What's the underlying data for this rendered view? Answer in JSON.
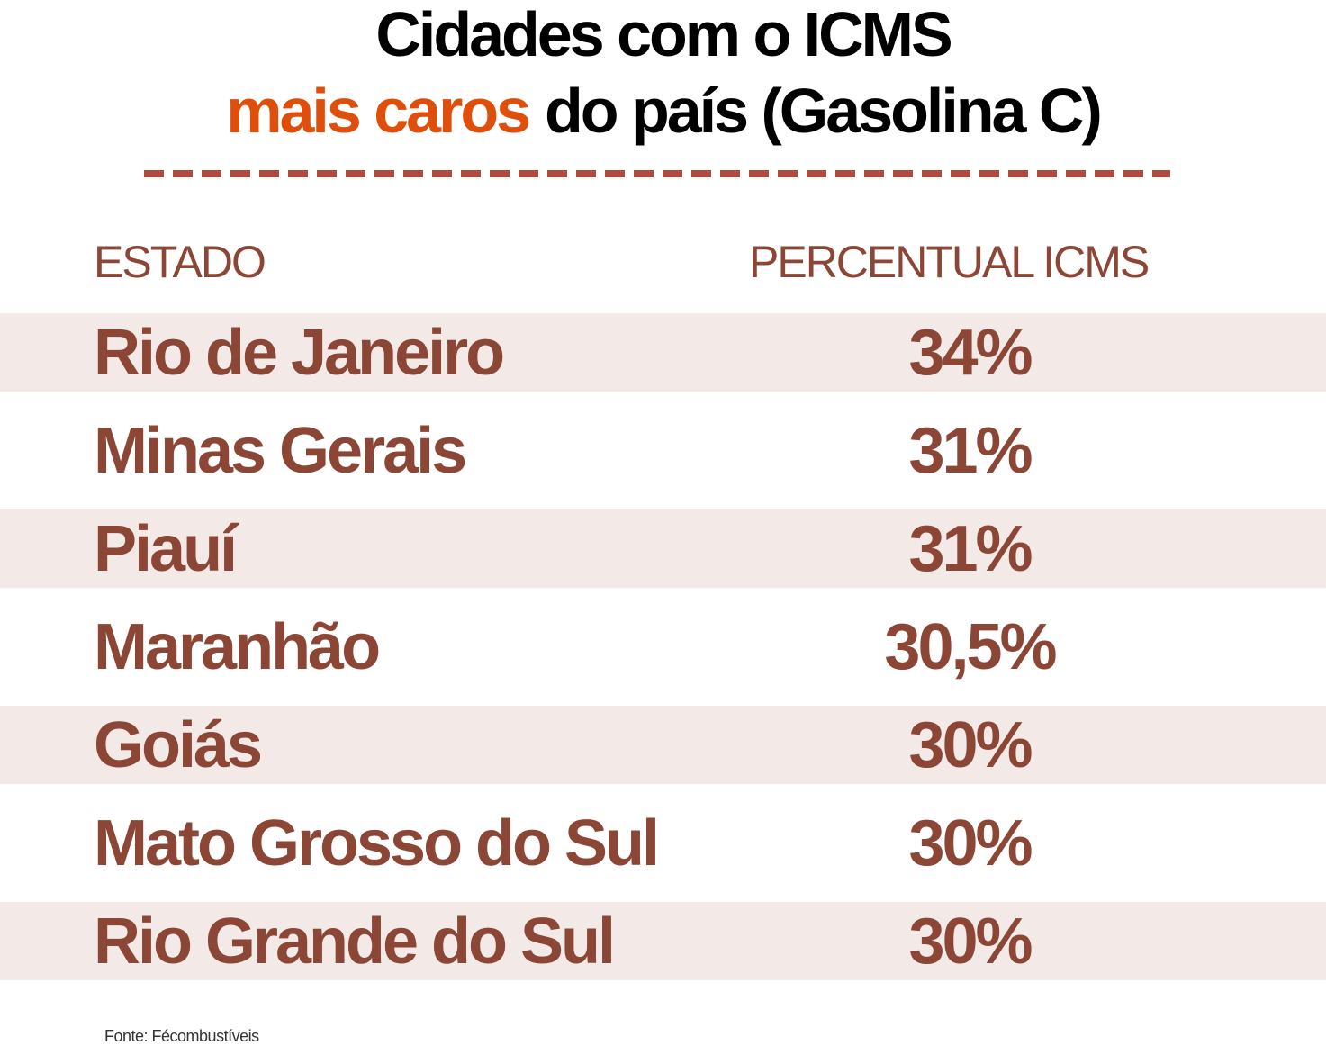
{
  "header": {
    "title_line1": "Cidades com o ICMS",
    "title_highlight": "mais caros",
    "title_rest": "do país (Gasolina C)"
  },
  "table": {
    "columns": [
      "ESTADO",
      "PERCENTUAL ICMS"
    ],
    "rows": [
      [
        "Rio de Janeiro",
        "34%"
      ],
      [
        "Minas Gerais",
        "31%"
      ],
      [
        "Piauí",
        "31%"
      ],
      [
        "Maranhão",
        "30,5%"
      ],
      [
        "Goiás",
        "30%"
      ],
      [
        "Mato Grosso do Sul",
        "30%"
      ],
      [
        "Rio Grande do Sul",
        "30%"
      ]
    ]
  },
  "footer": {
    "source": "Fonte: Fécombustíveis"
  }
}
